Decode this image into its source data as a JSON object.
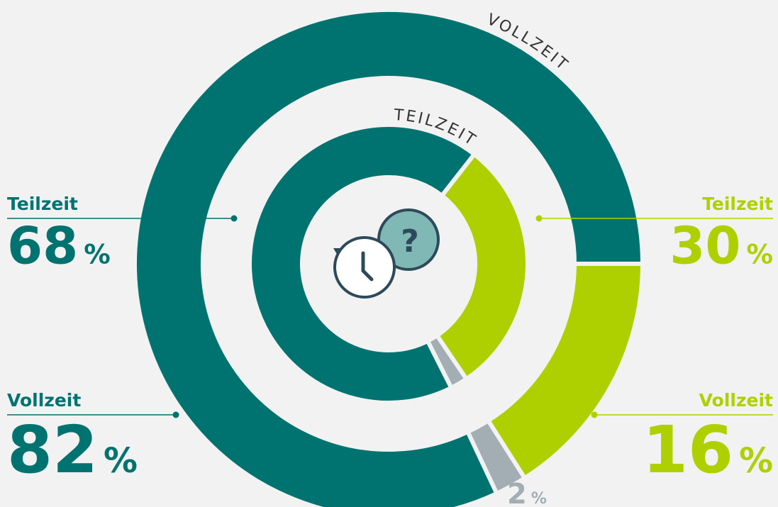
{
  "chart_data": {
    "type": "donut",
    "unit": "%",
    "series": [
      {
        "name": "VOLLZEIT",
        "labels": [
          "Vollzeit",
          "Vollzeit",
          null
        ],
        "values": [
          82,
          16,
          2
        ],
        "colors": [
          "#007370",
          "#afd000",
          "#a3adb4"
        ]
      },
      {
        "name": "TEILZEIT",
        "labels": [
          "Teilzeit",
          "Teilzeit",
          null
        ],
        "values": [
          68,
          30,
          2
        ],
        "colors": [
          "#007370",
          "#afd000",
          "#a3adb4"
        ]
      }
    ]
  }
}
